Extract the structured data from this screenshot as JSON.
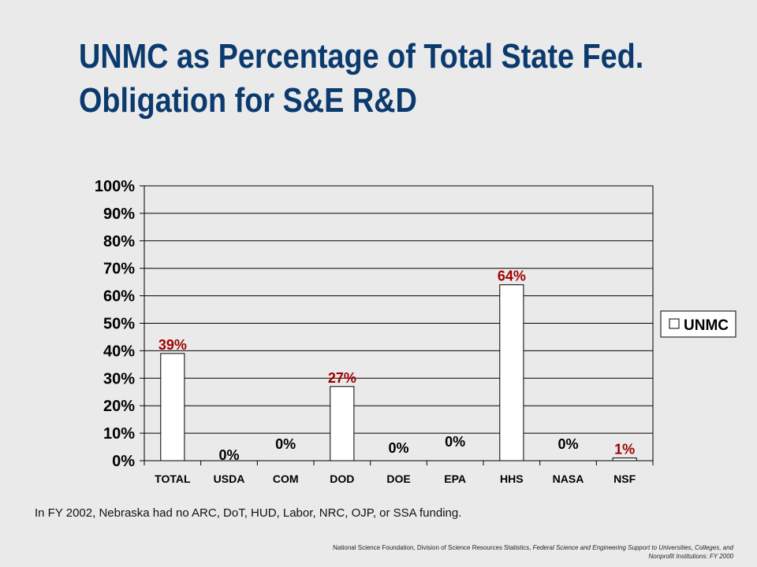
{
  "title_line1": "UNMC as Percentage of Total State Fed.",
  "title_line2": "Obligation for S&E R&D",
  "footnote": "In FY 2002, Nebraska had no ARC, DoT, HUD, Labor, NRC, OJP, or SSA funding.",
  "source": {
    "prefix": "National Science Foundation, Division of Science Resources Statistics, ",
    "italic": "Federal Science and Engineering Support to Universities, Colleges, and Nonprofit Institutions: FY 2000"
  },
  "colors": {
    "title": "#0b3a6e",
    "data_label": "#a00000",
    "bar_fill": "#ffffff",
    "background": "#eaeaea"
  },
  "chart_data": {
    "type": "bar",
    "categories": [
      "TOTAL",
      "USDA",
      "COM",
      "DOD",
      "DOE",
      "EPA",
      "HHS",
      "NASA",
      "NSF"
    ],
    "series": [
      {
        "name": "UNMC",
        "values": [
          39,
          0,
          0,
          27,
          0,
          0,
          64,
          0,
          1
        ],
        "labels": [
          "39%",
          "0%",
          "0%",
          "27%",
          "0%",
          "0%",
          "64%",
          "0%",
          "1%"
        ]
      }
    ],
    "yticks": [
      "0%",
      "10%",
      "20%",
      "30%",
      "40%",
      "50%",
      "60%",
      "70%",
      "80%",
      "90%",
      "100%"
    ],
    "ylim": [
      0,
      100
    ],
    "grid": true,
    "legend_position": "right"
  }
}
